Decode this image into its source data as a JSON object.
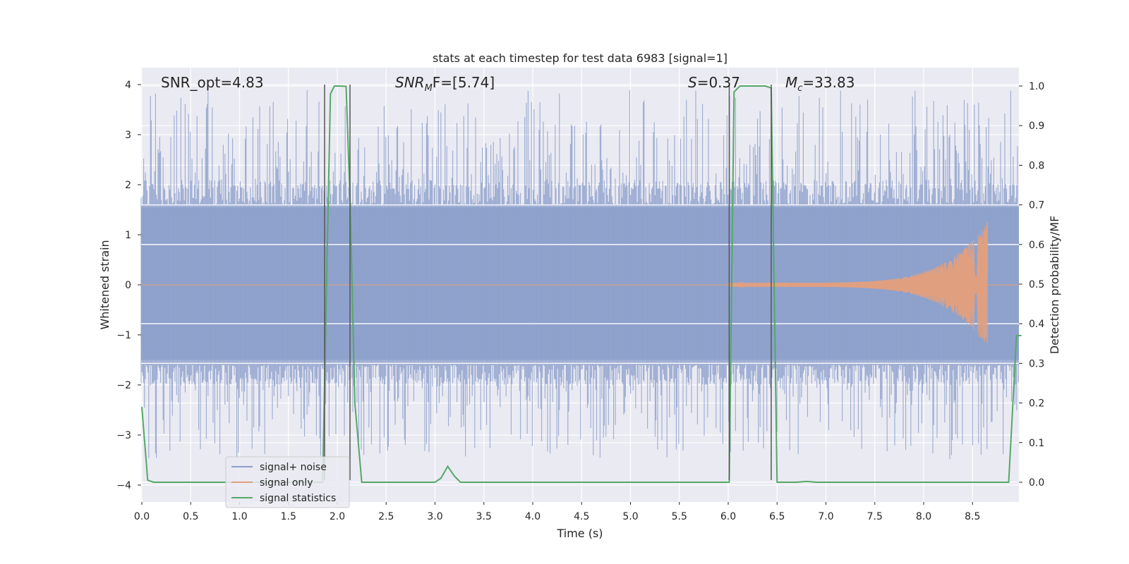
{
  "chart_data": {
    "type": "line",
    "title": "stats at each timestep for test data 6983 [signal=1]",
    "xlabel": "Time (s)",
    "ylabel_left": "Whitened strain",
    "ylabel_right": "Detection probability/MF",
    "xlim": [
      0.0,
      9.0
    ],
    "ylim_left": [
      -4.3,
      4.4
    ],
    "ylim_right": [
      -0.05,
      1.05
    ],
    "x_ticks": [
      "0.0",
      "0.5",
      "1.0",
      "1.5",
      "2.0",
      "2.5",
      "3.0",
      "3.5",
      "4.0",
      "4.5",
      "5.0",
      "5.5",
      "6.0",
      "6.5",
      "7.0",
      "7.5",
      "8.0",
      "8.5"
    ],
    "y_ticks_left": [
      "4",
      "3",
      "2",
      "1",
      "0",
      "−1",
      "−2",
      "−3",
      "−4"
    ],
    "y_ticks_right": [
      "1.0",
      "0.9",
      "0.8",
      "0.7",
      "0.6",
      "0.5",
      "0.4",
      "0.3",
      "0.2",
      "0.1",
      "0.0"
    ],
    "grid": true,
    "legend_position": "lower-left",
    "annotations": {
      "snr_opt": "SNR_opt=4.83",
      "snr_mf": "SNR_MF=[5.74]",
      "snr_mf_main": "SNR",
      "snr_mf_sub": "M",
      "snr_mf_tail": "F=[5.74]",
      "s_value": "S=0.37",
      "s_main": "S",
      "s_tail": "=0.37",
      "mc_value": "M_c=33.83",
      "mc_main": "M",
      "mc_sub": "c",
      "mc_tail": "=33.83"
    },
    "vertical_lines_x": [
      1.87,
      2.13,
      6.01,
      6.44
    ],
    "series": [
      {
        "name": "signal+ noise",
        "color": "#8da0cb",
        "description_type": "noise",
        "envelope_typical": 1.6,
        "envelope_max": 3.9
      },
      {
        "name": "signal only",
        "color": "#e0a080",
        "description_type": "chirp",
        "chirp_start": 6.0,
        "chirp_end": 8.65,
        "peak_amplitude": 1.2
      },
      {
        "name": "signal statistics",
        "color": "#55a868",
        "axis": "right",
        "x": [
          0.0,
          0.06,
          0.12,
          0.5,
          1.0,
          1.5,
          1.85,
          1.89,
          1.93,
          1.97,
          2.03,
          2.09,
          2.13,
          2.18,
          2.25,
          2.5,
          3.0,
          3.06,
          3.13,
          3.2,
          3.26,
          3.5,
          4.0,
          5.0,
          6.0,
          6.01,
          6.06,
          6.12,
          6.38,
          6.44,
          6.5,
          6.56,
          6.7,
          6.8,
          6.9,
          7.0,
          8.0,
          8.7,
          8.87,
          8.95,
          9.0
        ],
        "values": [
          0.19,
          0.005,
          0.0,
          0.0,
          0.0,
          0.0,
          0.0,
          0.5,
          0.98,
          1.0,
          1.0,
          0.999,
          0.72,
          0.2,
          0.0,
          0.0,
          0.0,
          0.01,
          0.04,
          0.015,
          0.0,
          0.0,
          0.0,
          0.0,
          0.0,
          0.0,
          0.985,
          1.0,
          1.0,
          0.995,
          0.0,
          0.0,
          0.0,
          0.002,
          0.0,
          0.0,
          0.0,
          0.0,
          0.0,
          0.37,
          0.37
        ]
      }
    ]
  }
}
